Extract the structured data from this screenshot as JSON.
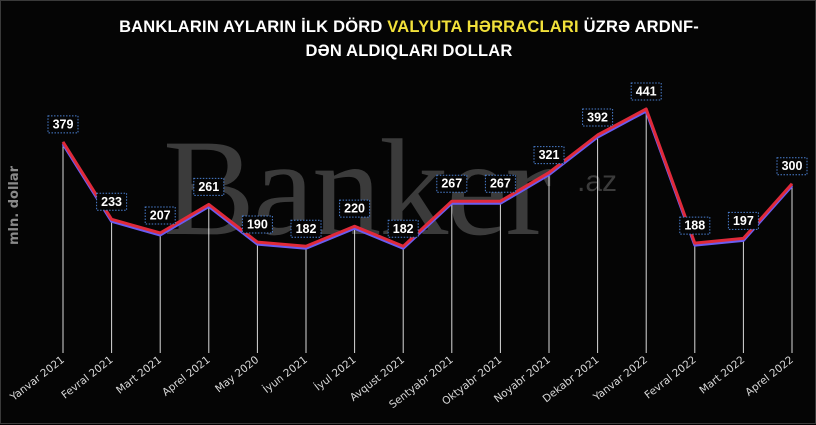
{
  "title": {
    "line1_before": "BANKLARIN AYLARIN İLK DÖRD ",
    "line1_highlight": "VALYUTA HƏRRACLARI",
    "line1_after": " ÜZRƏ ARDNF-",
    "line2": "DƏN ALDIQLARI DOLLAR"
  },
  "watermark": {
    "text": "Banker",
    "suffix": ".az"
  },
  "chart_data": {
    "type": "line",
    "ylabel": "mln. dollar",
    "categories": [
      "Yanvar 2021",
      "Fevral 2021",
      "Mart 2021",
      "Aprel 2021",
      "May 2020",
      "İyun 2021",
      "İyul 2021",
      "Avqust 2021",
      "Sentyabr 2021",
      "Oktyabr 2021",
      "Noyabr 2021",
      "Dekabr 2021",
      "Yanvar 2022",
      "Fevral 2022",
      "Mart 2022",
      "Aprel 2022"
    ],
    "values": [
      379,
      233,
      207,
      261,
      190,
      182,
      220,
      182,
      267,
      267,
      321,
      392,
      441,
      188,
      197,
      300
    ],
    "data_labels": [
      "379",
      "233",
      "207",
      "261",
      "190",
      "182",
      "220",
      "182",
      "267",
      "267",
      "321",
      "392",
      "441",
      "188",
      "197",
      "300"
    ],
    "grid": false,
    "legend": "none",
    "colors": {
      "line": "#e02a3a",
      "line_shadow": "#6a5cf0",
      "drop_lines": "#ffffff",
      "label_border": "#4a7fd0",
      "background": "#050505",
      "title_highlight": "#f2e13a"
    }
  }
}
